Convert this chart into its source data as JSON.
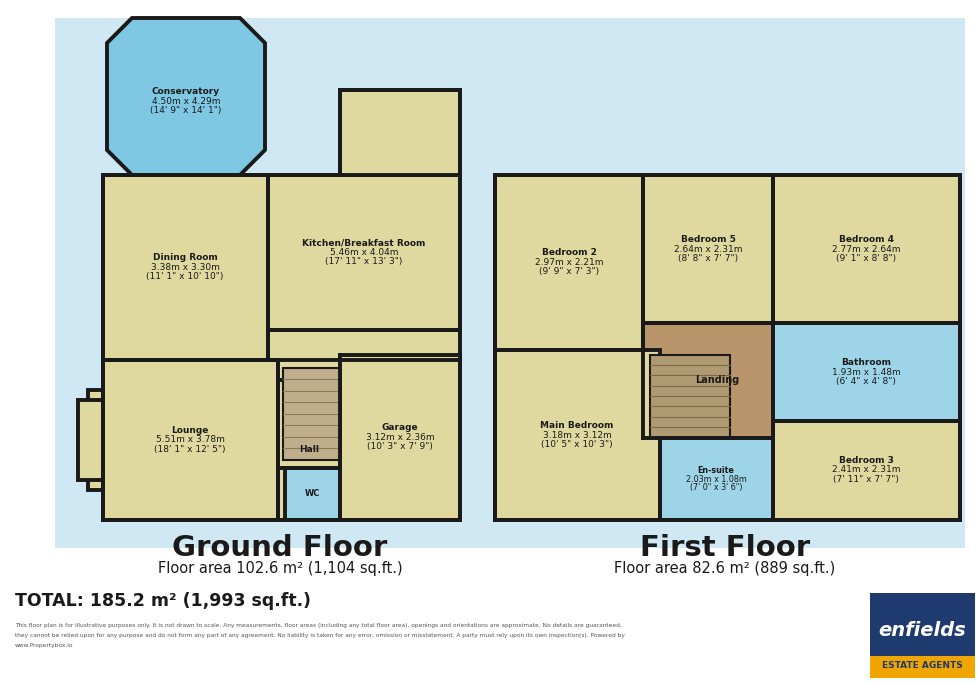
{
  "bg_color": "#ffffff",
  "wall_color": "#1a1a1a",
  "yellow": "#dfd9a0",
  "blue_conservatory": "#7ec8e3",
  "brown_landing": "#b8956a",
  "light_blue_wet": "#9ed4e8",
  "stair_color": "#c4b48a",
  "gf_bg": "#cce4f0",
  "ff_bg": "#cce4f0",
  "ground_floor_label": "Ground Floor",
  "ground_floor_area": "Floor area 102.6 m² (1,104 sq.ft.)",
  "first_floor_label": "First Floor",
  "first_floor_area": "Floor area 82.6 m² (889 sq.ft.)",
  "total_label": "TOTAL: 185.2 m² (1,993 sq.ft.)",
  "disclaimer": "This floor plan is for illustrative purposes only. It is not drawn to scale. Any measurements, floor areas (including any total floor area), openings and orientations are approximate. No details are guaranteed, they cannot be relied upon for any purpose and do not form any part of any agreement. No liability is taken for any error, omission or misstatement. A party must rely upon its own inspection(s). Powered by www.Propertybox.io"
}
